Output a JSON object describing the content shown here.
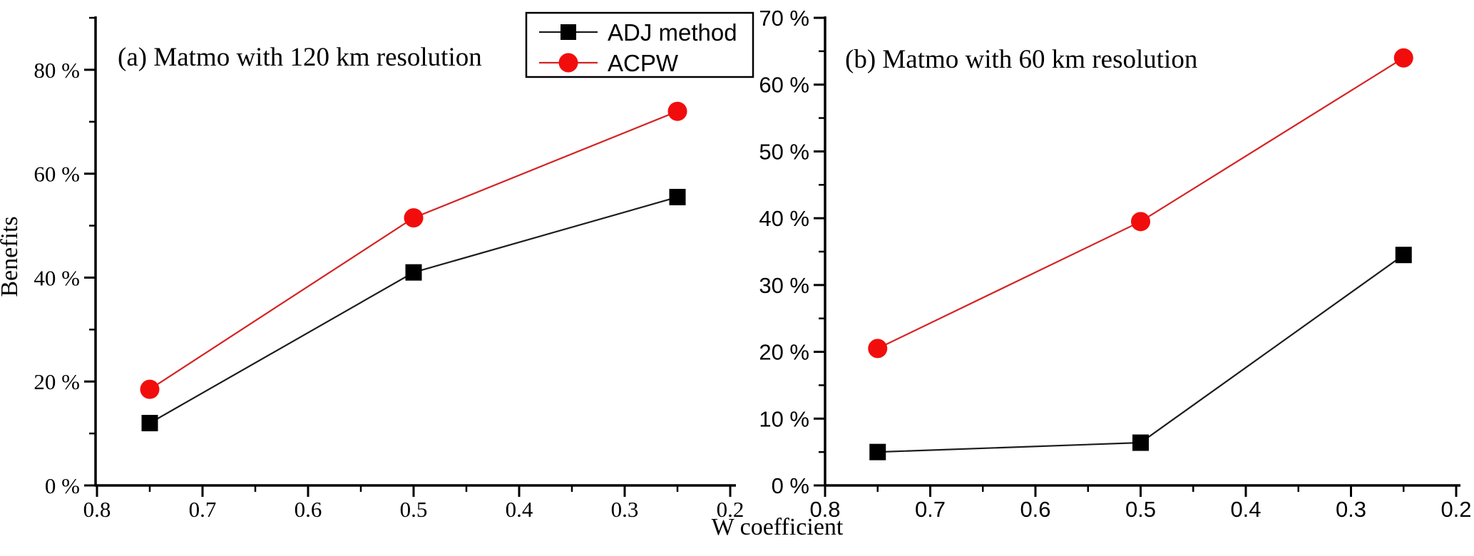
{
  "figure": {
    "xlabel": "W coefficient",
    "background_color": "#ffffff",
    "axis_color": "#000000"
  },
  "legend": {
    "position": "top-center",
    "entries": [
      {
        "label": "ADJ method",
        "marker": "square",
        "marker_color": "#000000",
        "line_color": "#1c1c1c"
      },
      {
        "label": "ACPW",
        "marker": "circle",
        "marker_color": "#f20d0d",
        "line_color": "#d62222"
      }
    ]
  },
  "chart_data": [
    {
      "type": "line",
      "panel": "a",
      "title": "(a) Matmo with 120 km resolution",
      "ylabel": "Benefits",
      "xlabel": "W coefficient",
      "x_axis": {
        "range": [
          0.8,
          0.2
        ],
        "reversed": true,
        "major_ticks": [
          0.8,
          0.7,
          0.6,
          0.5,
          0.4,
          0.3,
          0.2
        ],
        "minor_step": 0.05
      },
      "y_axis": {
        "range": [
          0,
          90
        ],
        "major_step": 20,
        "minor_step": 10,
        "tick_suffix": " %",
        "major_tick_labels": [
          "0 %",
          "20 %",
          "40 %",
          "60 %",
          "80 %"
        ]
      },
      "grid": false,
      "tick_font": "serif",
      "series": [
        {
          "name": "ADJ method",
          "marker": "square",
          "marker_color": "#000000",
          "line_color": "#1c1c1c",
          "x": [
            0.75,
            0.5,
            0.25
          ],
          "y": [
            12,
            41,
            55.5
          ]
        },
        {
          "name": "ACPW",
          "marker": "circle",
          "marker_color": "#f20d0d",
          "line_color": "#d62222",
          "x": [
            0.75,
            0.5,
            0.25
          ],
          "y": [
            18.5,
            51.5,
            72
          ]
        }
      ]
    },
    {
      "type": "line",
      "panel": "b",
      "title": "(b) Matmo with 60 km resolution",
      "ylabel": "",
      "xlabel": "W coefficient",
      "x_axis": {
        "range": [
          0.8,
          0.2
        ],
        "reversed": true,
        "major_ticks": [
          0.8,
          0.7,
          0.6,
          0.5,
          0.4,
          0.3,
          0.2
        ],
        "minor_step": 0.05
      },
      "y_axis": {
        "range": [
          0,
          70
        ],
        "major_step": 10,
        "minor_step": 5,
        "tick_suffix": " %",
        "major_tick_labels": [
          "0 %",
          "10 %",
          "20 %",
          "30 %",
          "40 %",
          "50 %",
          "60 %",
          "70 %"
        ]
      },
      "grid": false,
      "tick_font": "sans",
      "series": [
        {
          "name": "ADJ method",
          "marker": "square",
          "marker_color": "#000000",
          "line_color": "#1c1c1c",
          "x": [
            0.75,
            0.5,
            0.25
          ],
          "y": [
            5,
            6.4,
            34.5
          ]
        },
        {
          "name": "ACPW",
          "marker": "circle",
          "marker_color": "#f20d0d",
          "line_color": "#d62222",
          "x": [
            0.75,
            0.5,
            0.25
          ],
          "y": [
            20.5,
            39.5,
            64
          ]
        }
      ]
    }
  ]
}
